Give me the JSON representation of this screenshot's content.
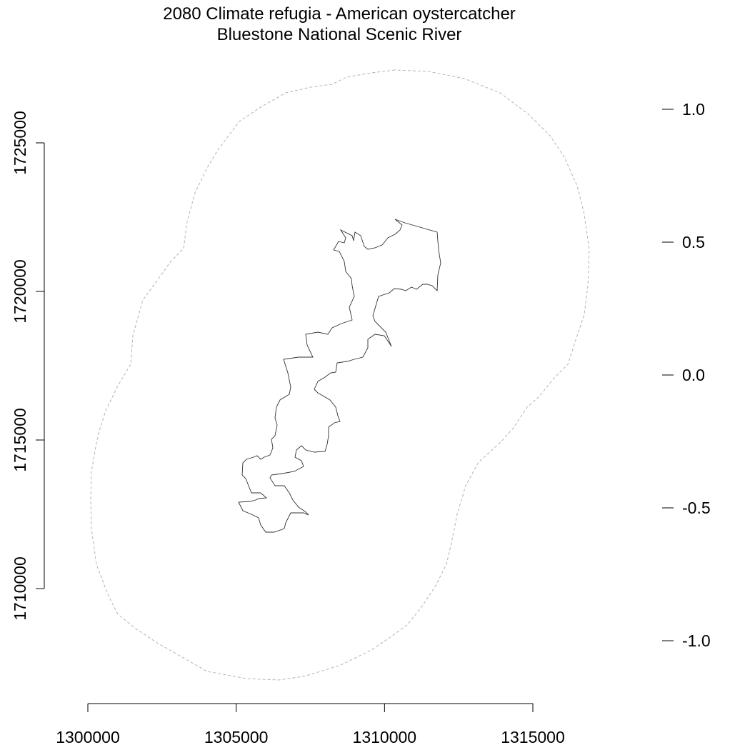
{
  "title": {
    "line1": "2080 Climate refugia - American oystercatcher",
    "line2": "Bluestone National Scenic River"
  },
  "x_axis": {
    "range": [
      1300000,
      1315000
    ],
    "ticks": [
      {
        "value": 1300000,
        "label": "1300000"
      },
      {
        "value": 1305000,
        "label": "1305000"
      },
      {
        "value": 1310000,
        "label": "1310000"
      },
      {
        "value": 1315000,
        "label": "1315000"
      }
    ]
  },
  "y_axis": {
    "range": [
      1710000,
      1725000
    ],
    "ticks": [
      {
        "value": 1710000,
        "label": "1710000"
      },
      {
        "value": 1715000,
        "label": "1715000"
      },
      {
        "value": 1720000,
        "label": "1720000"
      },
      {
        "value": 1725000,
        "label": "1725000"
      }
    ]
  },
  "legend_scale": {
    "ticks": [
      {
        "value": 1.0,
        "label": "1.0"
      },
      {
        "value": 0.5,
        "label": "0.5"
      },
      {
        "value": 0.0,
        "label": "0.0"
      },
      {
        "value": -0.5,
        "label": "-0.5"
      },
      {
        "value": -1.0,
        "label": "-1.0"
      }
    ]
  },
  "colors": {
    "buffer_outline": "#b4b4b4",
    "park_boundary": "#333333",
    "axis": "#000000"
  }
}
